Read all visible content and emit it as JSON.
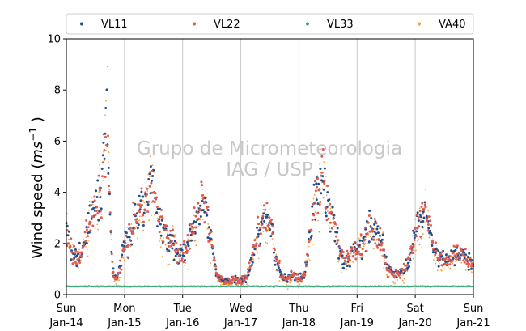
{
  "chart_data": {
    "type": "scatter",
    "title": "",
    "xlabel": "",
    "ylabel_main": "Wind speed (",
    "ylabel_unit_base": "ms",
    "ylabel_unit_exp": "−1",
    "ylabel_close": " )",
    "ylim": [
      0,
      10
    ],
    "xlim_days": [
      0,
      7
    ],
    "yticks": [
      "0",
      "2",
      "4",
      "6",
      "8",
      "10"
    ],
    "xticks": [
      {
        "day": "Sun",
        "date": "Jan-14"
      },
      {
        "day": "Mon",
        "date": "Jan-15"
      },
      {
        "day": "Tue",
        "date": "Jan-16"
      },
      {
        "day": "Wed",
        "date": "Jan-17"
      },
      {
        "day": "Thu",
        "date": "Jan-18"
      },
      {
        "day": "Fri",
        "date": "Jan-19"
      },
      {
        "day": "Sat",
        "date": "Jan-20"
      },
      {
        "day": "Sun",
        "date": "Jan-21"
      }
    ],
    "grid": "vertical",
    "legend_position": "top",
    "watermark": [
      "Grupo de Micrometeorologia",
      "IAG / USP"
    ],
    "series": [
      {
        "name": "VL11",
        "color": "#1f4e8c"
      },
      {
        "name": "VL22",
        "color": "#e05b4f"
      },
      {
        "name": "VL33",
        "color": "#3aaa78"
      },
      {
        "name": "VA40",
        "color": "#f5a03c"
      }
    ],
    "profile": {
      "x_days": [
        0,
        0.1,
        0.2,
        0.3,
        0.45,
        0.55,
        0.62,
        0.68,
        0.7,
        0.72,
        0.75,
        0.8,
        0.85,
        0.9,
        0.95,
        1.0,
        1.05,
        1.1,
        1.2,
        1.3,
        1.4,
        1.5,
        1.6,
        1.7,
        1.75,
        1.8,
        1.9,
        2.0,
        2.1,
        2.2,
        2.3,
        2.4,
        2.5,
        2.6,
        2.7,
        2.8,
        2.9,
        3.0,
        3.1,
        3.2,
        3.3,
        3.4,
        3.5,
        3.6,
        3.7,
        3.8,
        3.9,
        4.0,
        4.1,
        4.2,
        4.3,
        4.4,
        4.5,
        4.6,
        4.7,
        4.8,
        4.9,
        5.0,
        5.1,
        5.2,
        5.3,
        5.4,
        5.5,
        5.6,
        5.7,
        5.8,
        5.9,
        6.0,
        6.1,
        6.2,
        6.3,
        6.4,
        6.5,
        6.6,
        6.7,
        6.8,
        6.9,
        7.0
      ],
      "speed": [
        2.5,
        1.7,
        1.4,
        1.9,
        3.3,
        3.6,
        4.5,
        6.5,
        7.8,
        6.0,
        3.0,
        0.9,
        0.6,
        0.8,
        1.4,
        1.9,
        2.1,
        2.3,
        2.9,
        3.5,
        3.9,
        4.3,
        3.0,
        2.3,
        2.0,
        2.4,
        1.7,
        1.5,
        2.0,
        2.8,
        3.5,
        3.3,
        2.0,
        0.7,
        0.5,
        0.5,
        0.6,
        0.6,
        0.6,
        1.5,
        2.4,
        3.0,
        2.8,
        1.5,
        0.7,
        0.6,
        0.8,
        0.6,
        0.8,
        2.5,
        4.0,
        4.5,
        3.6,
        2.6,
        1.8,
        1.2,
        1.6,
        1.7,
        2.0,
        2.7,
        2.4,
        2.0,
        1.3,
        0.8,
        0.8,
        1.0,
        1.3,
        2.5,
        3.1,
        3.0,
        2.0,
        1.4,
        1.3,
        1.3,
        1.6,
        1.7,
        1.3,
        1.2
      ],
      "vl33_level": 0.32
    }
  }
}
